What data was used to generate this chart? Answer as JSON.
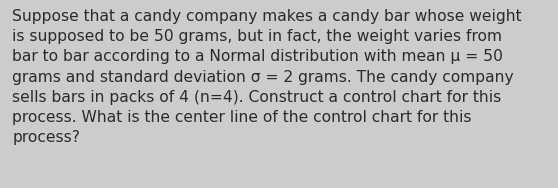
{
  "text": "Suppose that a candy company makes a candy bar whose weight\nis supposed to be 50 grams, but in fact, the weight varies from\nbar to bar according to a Normal distribution with mean μ = 50\ngrams and standard deviation σ = 2 grams. The candy company\nsells bars in packs of 4 (n=4). Construct a control chart for this\nprocess. What is the center line of the control chart for this\nprocess?",
  "background_color": "#cccccc",
  "text_color": "#2b2b2b",
  "font_size": 11.2,
  "fig_width": 5.58,
  "fig_height": 1.88,
  "dpi": 100
}
